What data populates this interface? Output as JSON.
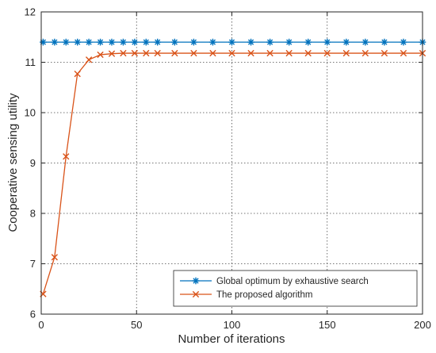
{
  "chart_data": {
    "type": "line",
    "xlabel": "Number of iterations",
    "ylabel": "Cooperative sensing utility",
    "xlim": [
      0,
      200
    ],
    "ylim": [
      6,
      12
    ],
    "xticks": [
      0,
      50,
      100,
      150,
      200
    ],
    "yticks": [
      6,
      7,
      8,
      9,
      10,
      11,
      12
    ],
    "grid": true,
    "legend_position": "bottom-right",
    "series": [
      {
        "name": "Global optimum by exhaustive search",
        "color": "#0072BD",
        "marker": "asterisk",
        "x": [
          1,
          7,
          13,
          19,
          25,
          31,
          37,
          43,
          49,
          55,
          61,
          70,
          80,
          90,
          100,
          110,
          120,
          130,
          140,
          150,
          160,
          170,
          180,
          190,
          200
        ],
        "y": [
          11.4,
          11.4,
          11.4,
          11.4,
          11.4,
          11.4,
          11.4,
          11.4,
          11.4,
          11.4,
          11.4,
          11.4,
          11.4,
          11.4,
          11.4,
          11.4,
          11.4,
          11.4,
          11.4,
          11.4,
          11.4,
          11.4,
          11.4,
          11.4,
          11.4
        ]
      },
      {
        "name": "The proposed algorithm",
        "color": "#D95319",
        "marker": "x",
        "x": [
          1,
          7,
          13,
          19,
          25,
          31,
          37,
          43,
          49,
          55,
          61,
          70,
          80,
          90,
          100,
          110,
          120,
          130,
          140,
          150,
          160,
          170,
          180,
          190,
          200
        ],
        "y": [
          6.4,
          7.13,
          9.13,
          10.77,
          11.05,
          11.15,
          11.17,
          11.18,
          11.18,
          11.18,
          11.18,
          11.18,
          11.18,
          11.18,
          11.18,
          11.18,
          11.18,
          11.18,
          11.18,
          11.18,
          11.18,
          11.18,
          11.18,
          11.18,
          11.18
        ]
      }
    ]
  }
}
